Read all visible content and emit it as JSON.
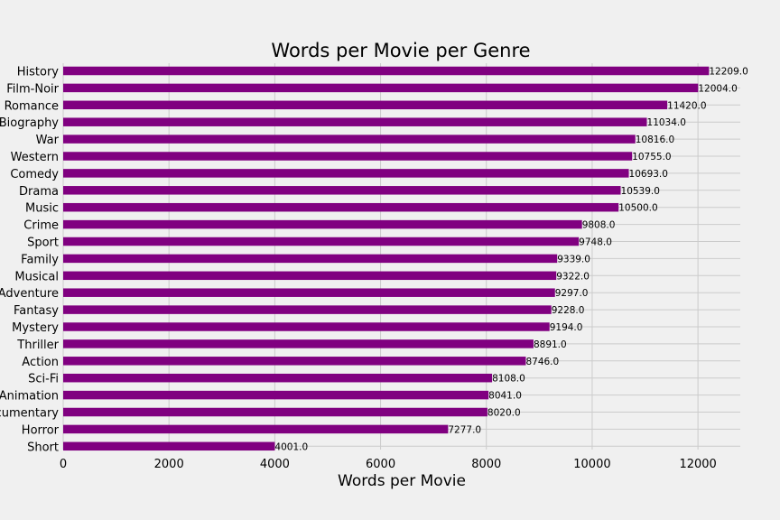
{
  "chart_data": {
    "type": "bar",
    "orientation": "horizontal",
    "title": "Words per Movie per Genre",
    "xlabel": "Words per Movie",
    "ylabel": "",
    "xlim": [
      0,
      12800
    ],
    "xticks": [
      0,
      2000,
      4000,
      6000,
      8000,
      10000,
      12000
    ],
    "grid": true,
    "bar_color": "#800080",
    "background": "#f0f0f0",
    "categories": [
      "History",
      "Film-Noir",
      "Romance",
      "Biography",
      "War",
      "Western",
      "Comedy",
      "Drama",
      "Music",
      "Crime",
      "Sport",
      "Family",
      "Musical",
      "Adventure",
      "Fantasy",
      "Mystery",
      "Thriller",
      "Action",
      "Sci-Fi",
      "Animation",
      "Documentary",
      "Horror",
      "Short"
    ],
    "values": [
      12209.0,
      12004.0,
      11420.0,
      11034.0,
      10816.0,
      10755.0,
      10693.0,
      10539.0,
      10500.0,
      9808.0,
      9748.0,
      9339.0,
      9322.0,
      9297.0,
      9228.0,
      9194.0,
      8891.0,
      8746.0,
      8108.0,
      8041.0,
      8020.0,
      7277.0,
      4001.0
    ],
    "value_labels": [
      "12209.0",
      "12004.0",
      "11420.0",
      "11034.0",
      "10816.0",
      "10755.0",
      "10693.0",
      "10539.0",
      "10500.0",
      "9808.0",
      "9748.0",
      "9339.0",
      "9322.0",
      "9297.0",
      "9228.0",
      "9194.0",
      "8891.0",
      "8746.0",
      "8108.0",
      "8041.0",
      "8020.0",
      "7277.0",
      "4001.0"
    ]
  }
}
